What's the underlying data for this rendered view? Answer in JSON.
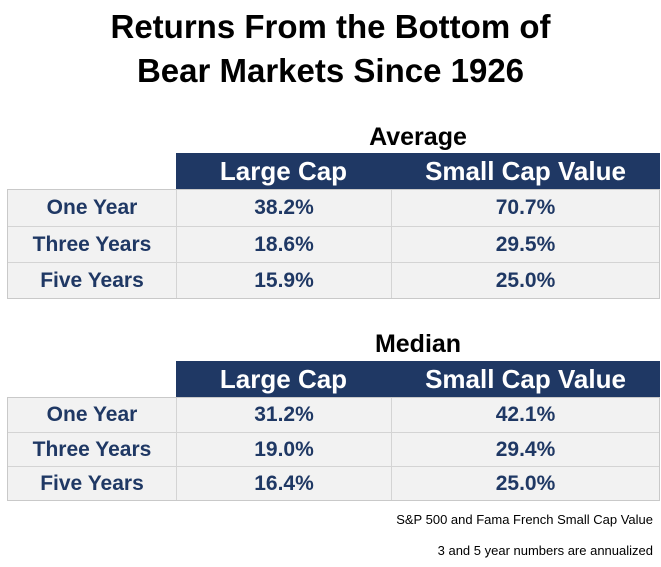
{
  "title": {
    "line1": "Returns From the Bottom of",
    "line2": "Bear Markets Since 1926"
  },
  "tables": [
    {
      "label": "Average",
      "columns": [
        "Large Cap",
        "Small Cap Value"
      ],
      "rows": [
        {
          "label": "One Year",
          "values": [
            "38.2%",
            "70.7%"
          ]
        },
        {
          "label": "Three Years",
          "values": [
            "18.6%",
            "29.5%"
          ]
        },
        {
          "label": "Five Years",
          "values": [
            "15.9%",
            "25.0%"
          ]
        }
      ]
    },
    {
      "label": "Median",
      "columns": [
        "Large Cap",
        "Small Cap Value"
      ],
      "rows": [
        {
          "label": "One Year",
          "values": [
            "31.2%",
            "42.1%"
          ]
        },
        {
          "label": "Three Years",
          "values": [
            "19.0%",
            "29.4%"
          ]
        },
        {
          "label": "Five Years",
          "values": [
            "16.4%",
            "25.0%"
          ]
        }
      ]
    }
  ],
  "notes": [
    "S&P 500 and Fama French Small Cap Value",
    "3 and 5 year numbers are annualized"
  ],
  "colors": {
    "header_bg": "#1f3864",
    "header_text": "#ffffff",
    "cell_text": "#1f3864",
    "row_bg": "#f2f2f2"
  }
}
